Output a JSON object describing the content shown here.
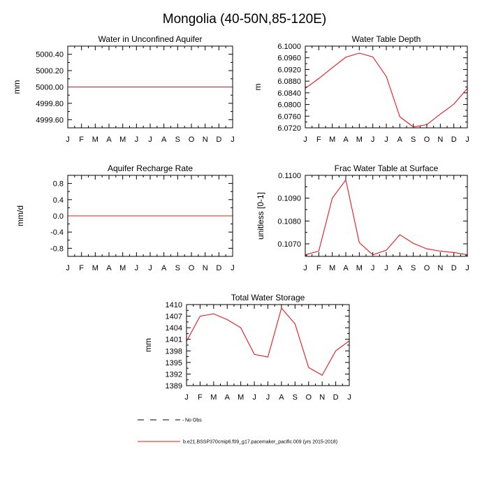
{
  "figure": {
    "title": "Mongolia (40-50N,85-120E)"
  },
  "legend": {
    "obs_label": "No Obs",
    "model_label": "b.e21.BSSP370cmip6.f09_g17.pacemaker_pacific.009 (yrs 2015-2018)",
    "obs_color": "#000000",
    "model_color": "#e8161e"
  },
  "chart_data": [
    {
      "id": "unconfined",
      "type": "line",
      "title": "Water in Unconfined Aquifer",
      "xlabel": "",
      "ylabel": "mm",
      "categories": [
        "J",
        "F",
        "M",
        "A",
        "M",
        "J",
        "J",
        "A",
        "S",
        "O",
        "N",
        "D",
        "J"
      ],
      "ylim": [
        4999.5,
        5000.5
      ],
      "yticks": [
        4999.6,
        4999.8,
        5000.0,
        5000.2,
        5000.4
      ],
      "ytick_labels": [
        "4999.60",
        "4999.80",
        "5000.00",
        "5000.20",
        "5000.40"
      ],
      "series": [
        {
          "name": "b.e21.BSSP370cmip6.f09_g17.pacemaker_pacific.009 (yrs 2015-2018)",
          "values": [
            5000,
            5000,
            5000,
            5000,
            5000,
            5000,
            5000,
            5000,
            5000,
            5000,
            5000,
            5000,
            5000
          ]
        }
      ]
    },
    {
      "id": "wtd",
      "type": "line",
      "title": "Water Table Depth",
      "xlabel": "",
      "ylabel": "m",
      "categories": [
        "J",
        "F",
        "M",
        "A",
        "M",
        "J",
        "J",
        "A",
        "S",
        "O",
        "N",
        "D",
        "J"
      ],
      "ylim": [
        6.072,
        6.1
      ],
      "yticks": [
        6.072,
        6.076,
        6.08,
        6.084,
        6.088,
        6.092,
        6.096,
        6.1
      ],
      "ytick_labels": [
        "6.0720",
        "6.0760",
        "6.0800",
        "6.0840",
        "6.0880",
        "6.0920",
        "6.0960",
        "6.1000"
      ],
      "series": [
        {
          "name": "b.e21.BSSP370cmip6.f09_g17.pacemaker_pacific.009 (yrs 2015-2018)",
          "values": [
            6.0855,
            6.0889,
            6.0926,
            6.0962,
            6.0976,
            6.0963,
            6.0896,
            6.0758,
            6.0723,
            6.0731,
            6.0767,
            6.0801,
            6.0855
          ]
        }
      ]
    },
    {
      "id": "recharge",
      "type": "line",
      "title": "Aquifer Recharge Rate",
      "xlabel": "",
      "ylabel": "mm/d",
      "categories": [
        "J",
        "F",
        "M",
        "A",
        "M",
        "J",
        "J",
        "A",
        "S",
        "O",
        "N",
        "D",
        "J"
      ],
      "ylim": [
        -1.0,
        1.0
      ],
      "yticks": [
        -0.8,
        -0.4,
        0.0,
        0.4,
        0.8
      ],
      "ytick_labels": [
        "-0.8",
        "-0.4",
        "0.0",
        "0.4",
        "0.8"
      ],
      "series": [
        {
          "name": "b.e21.BSSP370cmip6.f09_g17.pacemaker_pacific.009 (yrs 2015-2018)",
          "values": [
            0,
            0,
            0,
            0,
            0,
            0,
            0,
            0,
            0,
            0,
            0,
            0,
            0
          ]
        }
      ]
    },
    {
      "id": "fwt",
      "type": "line",
      "title": "Frac Water Table at Surface",
      "xlabel": "",
      "ylabel": "unitless [0-1]",
      "categories": [
        "J",
        "F",
        "M",
        "A",
        "M",
        "J",
        "J",
        "A",
        "S",
        "O",
        "N",
        "D",
        "J"
      ],
      "ylim": [
        0.10645,
        0.11
      ],
      "yticks": [
        0.107,
        0.108,
        0.109,
        0.11
      ],
      "ytick_labels": [
        "0.1070",
        "0.1080",
        "0.1090",
        "0.1100"
      ],
      "series": [
        {
          "name": "b.e21.BSSP370cmip6.f09_g17.pacemaker_pacific.009 (yrs 2015-2018)",
          "values": [
            0.10652,
            0.10668,
            0.109,
            0.1098,
            0.10705,
            0.10652,
            0.10672,
            0.1074,
            0.10702,
            0.10678,
            0.10668,
            0.10662,
            0.10652
          ]
        }
      ]
    },
    {
      "id": "tws",
      "type": "line",
      "title": "Total Water Storage",
      "xlabel": "",
      "ylabel": "mm",
      "categories": [
        "J",
        "F",
        "M",
        "A",
        "M",
        "J",
        "J",
        "A",
        "S",
        "O",
        "N",
        "D",
        "J"
      ],
      "ylim": [
        1389,
        1410
      ],
      "yticks": [
        1389,
        1392,
        1395,
        1398,
        1401,
        1404,
        1407,
        1410
      ],
      "ytick_labels": [
        "1389",
        "1392",
        "1395",
        "1398",
        "1401",
        "1404",
        "1407",
        "1410"
      ],
      "series": [
        {
          "name": "b.e21.BSSP370cmip6.f09_g17.pacemaker_pacific.009 (yrs 2015-2018)",
          "values": [
            1400.5,
            1407.0,
            1407.6,
            1406.1,
            1404.0,
            1397.1,
            1396.4,
            1409.1,
            1405.0,
            1393.7,
            1391.7,
            1398.0,
            1400.6
          ]
        }
      ]
    }
  ]
}
